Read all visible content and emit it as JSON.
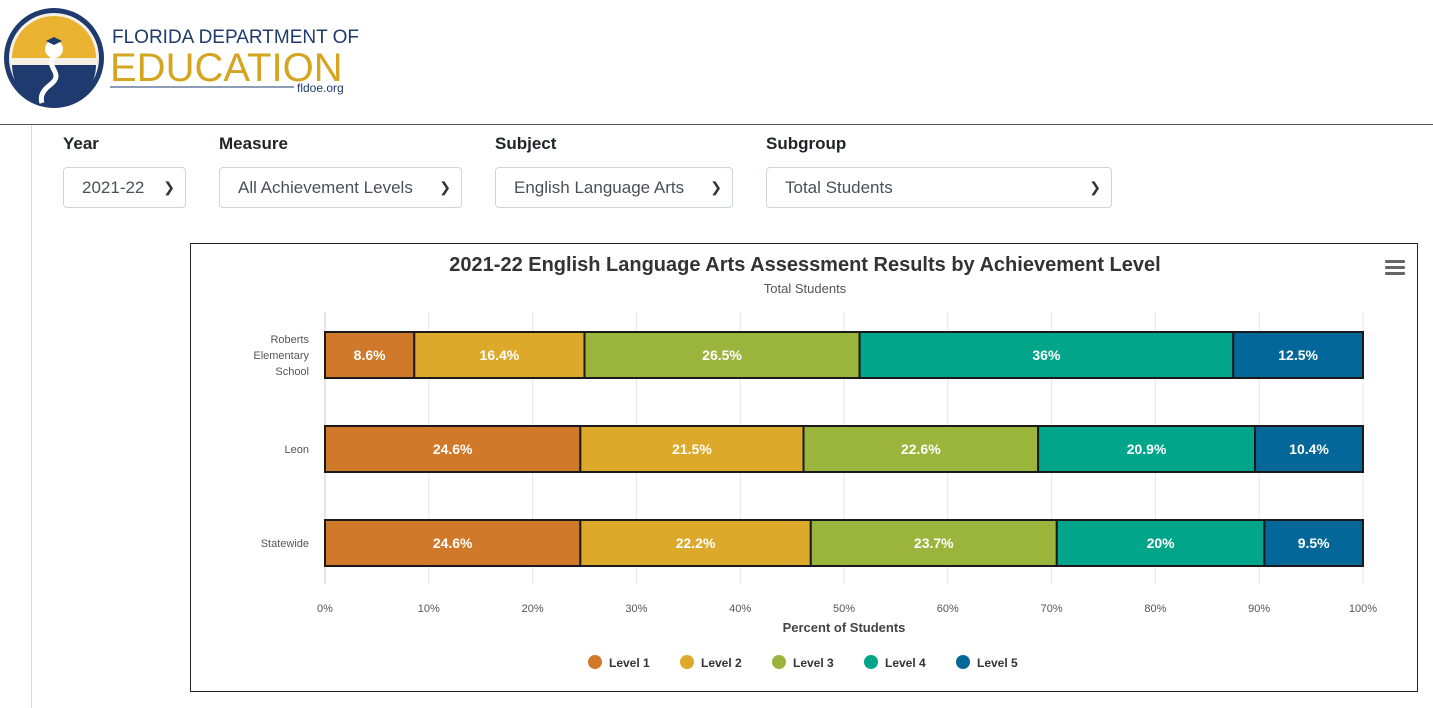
{
  "header": {
    "logo_line1": "FLORIDA DEPARTMENT OF",
    "logo_line2": "EDUCATION",
    "logo_url": "fldoe.org"
  },
  "filters": {
    "year": {
      "label": "Year",
      "value": "2021-22"
    },
    "measure": {
      "label": "Measure",
      "value": "All Achievement Levels"
    },
    "subject": {
      "label": "Subject",
      "value": "English Language Arts"
    },
    "subgroup": {
      "label": "Subgroup",
      "value": "Total Students"
    }
  },
  "icons": {
    "menu": "hamburger-menu-icon",
    "select": "chevron-down-icon"
  },
  "chart_data": {
    "type": "bar",
    "orientation": "horizontal",
    "stacked": true,
    "title": "2021-22 English Language Arts Assessment Results by Achievement Level",
    "subtitle": "Total Students",
    "xlabel": "Percent of Students",
    "ylabel": "",
    "xlim": [
      0,
      100
    ],
    "xticks": [
      "0%",
      "10%",
      "20%",
      "30%",
      "40%",
      "50%",
      "60%",
      "70%",
      "80%",
      "90%",
      "100%"
    ],
    "categories": [
      [
        "Roberts",
        "Elementary",
        "School"
      ],
      [
        "Leon"
      ],
      [
        "Statewide"
      ]
    ],
    "series": [
      {
        "name": "Level 1",
        "color": "#d0792a",
        "values": [
          8.6,
          24.6,
          24.6
        ]
      },
      {
        "name": "Level 2",
        "color": "#dda92a",
        "values": [
          16.4,
          21.5,
          22.2
        ]
      },
      {
        "name": "Level 3",
        "color": "#9bb53c",
        "values": [
          26.5,
          22.6,
          23.7
        ]
      },
      {
        "name": "Level 4",
        "color": "#00a58a",
        "values": [
          36,
          20.9,
          20
        ]
      },
      {
        "name": "Level 5",
        "color": "#046799",
        "values": [
          12.5,
          10.4,
          9.5
        ]
      }
    ],
    "legend": "bottom",
    "grid": true
  }
}
